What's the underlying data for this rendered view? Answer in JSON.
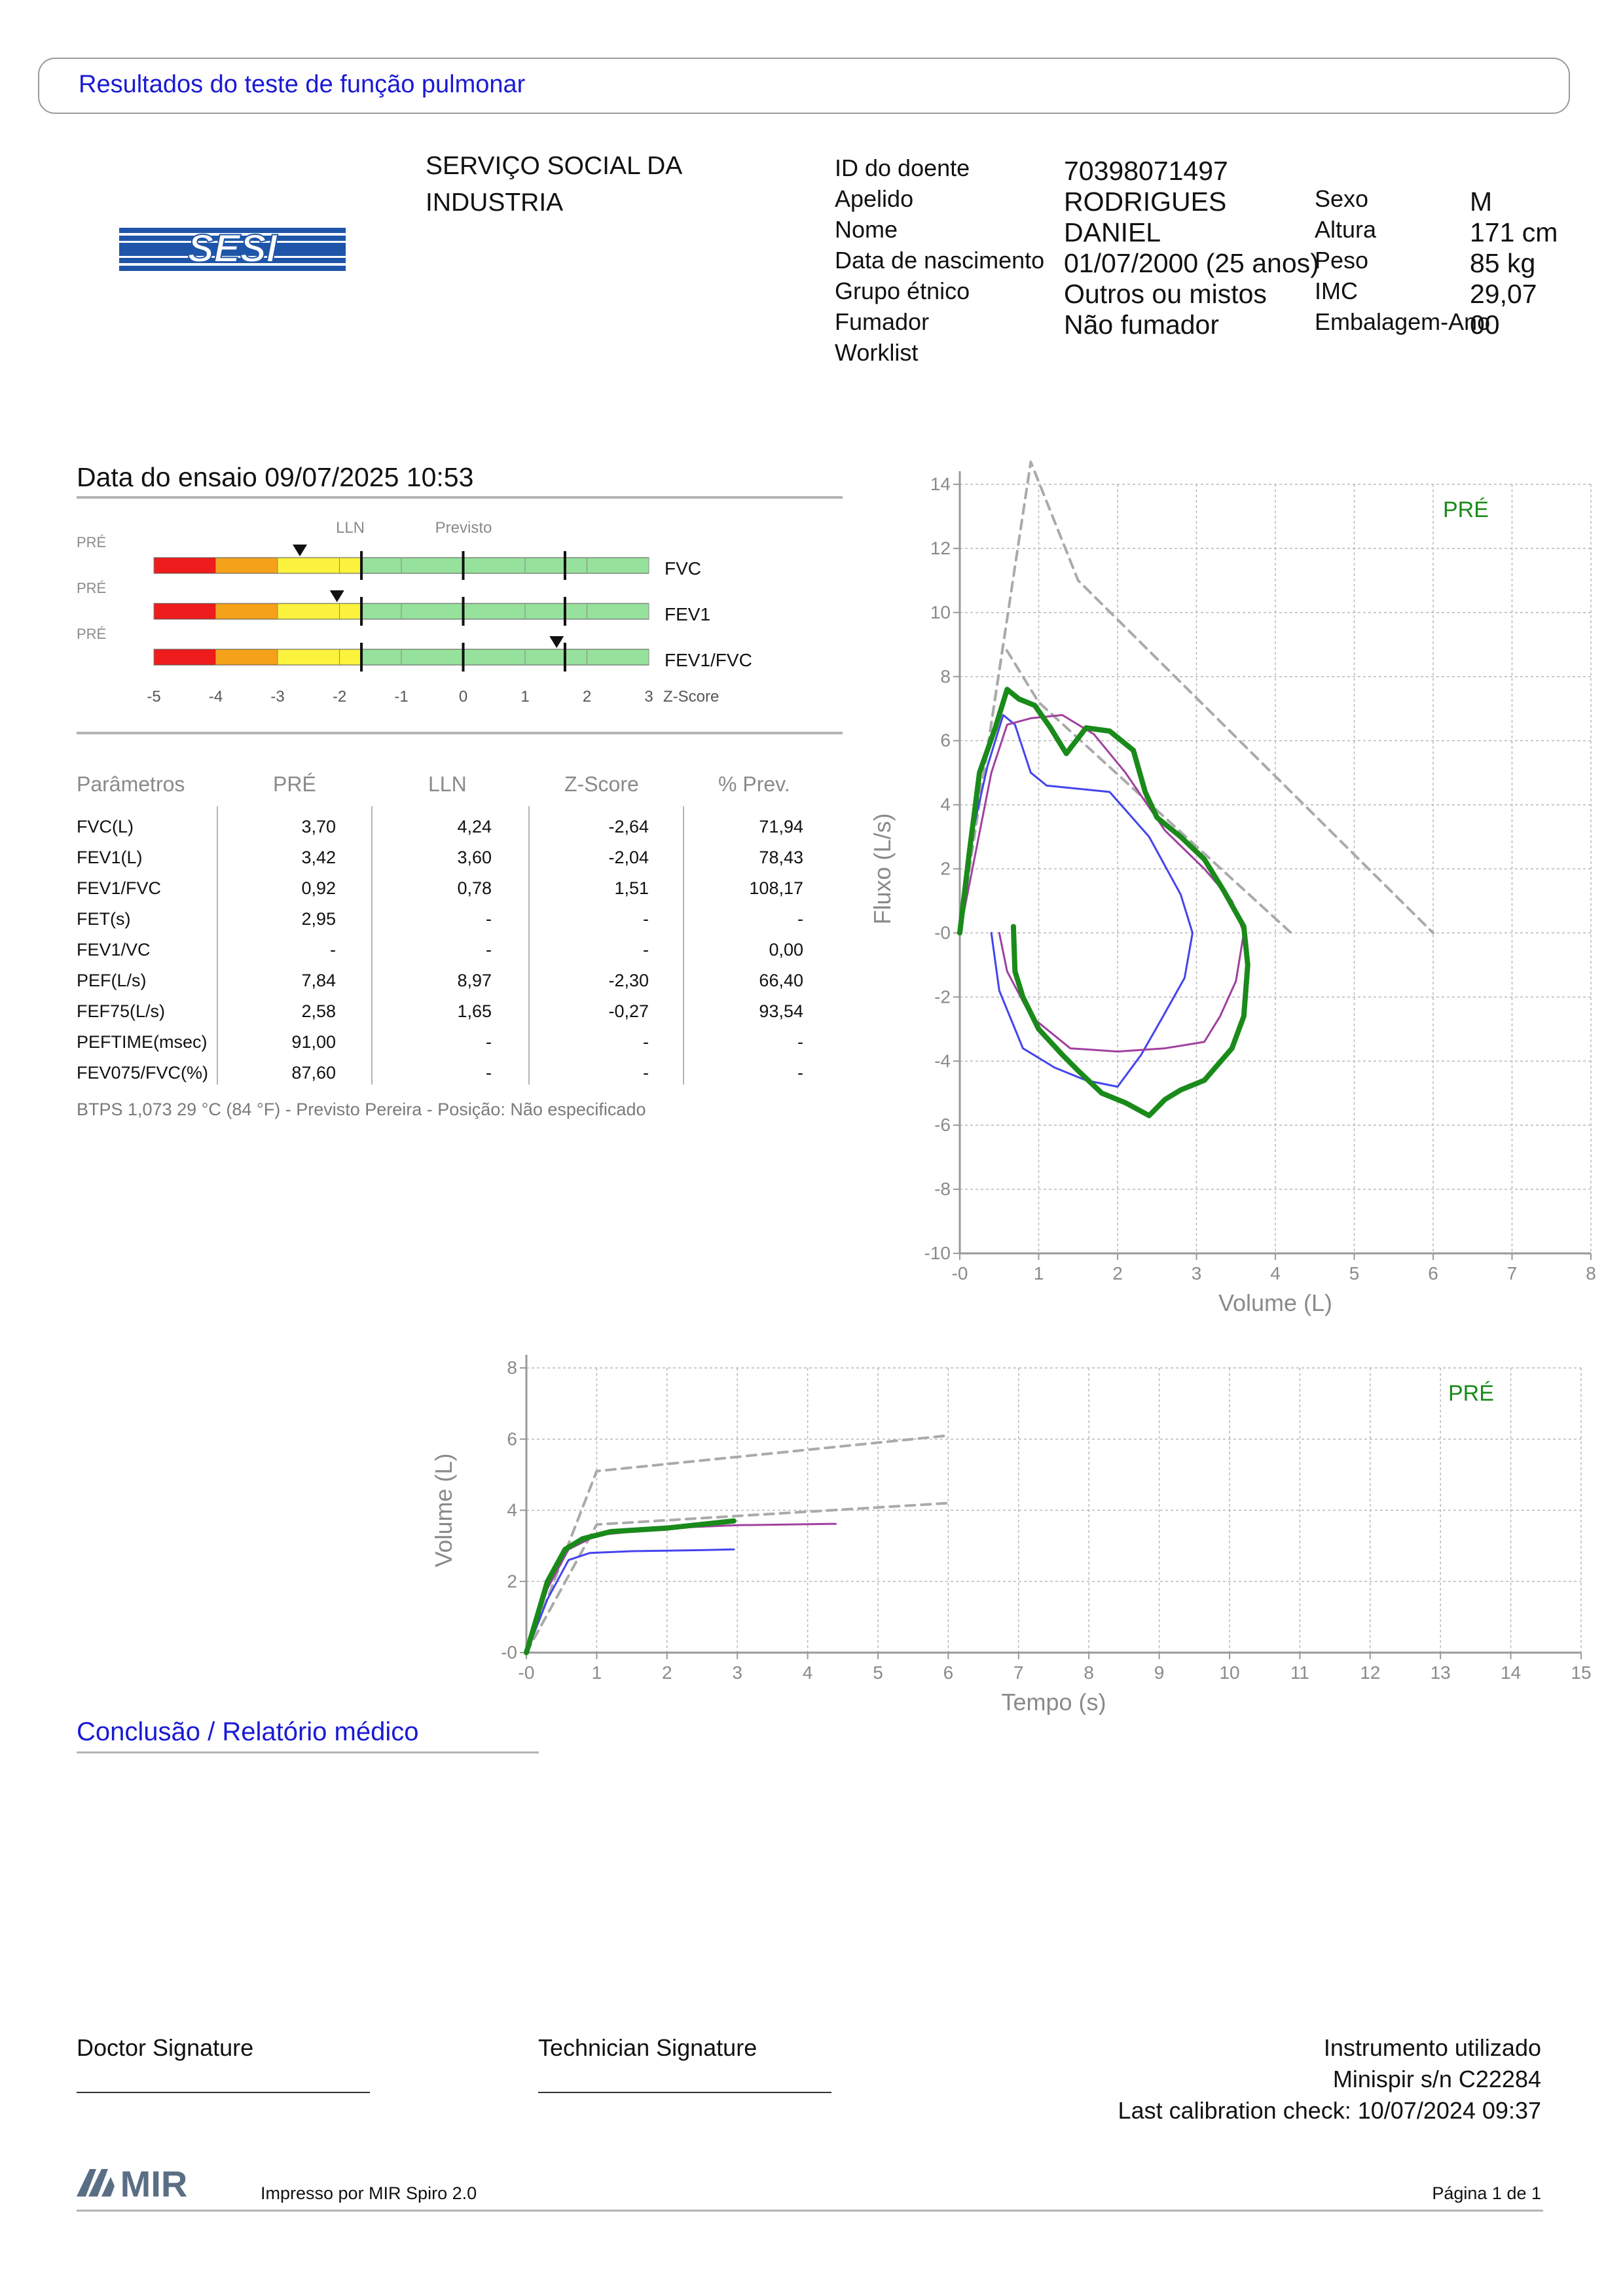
{
  "header": {
    "title": "Resultados do teste de função pulmonar"
  },
  "logo": {
    "text": "SESI",
    "color": "#1f55a8"
  },
  "organization": {
    "line1": "SERVIÇO SOCIAL DA",
    "line2": "INDUSTRIA"
  },
  "patient": {
    "fields": [
      {
        "label": "ID do doente",
        "value": "70398071497"
      },
      {
        "label": "Apelido",
        "value": "RODRIGUES"
      },
      {
        "label": "Nome",
        "value": "DANIEL"
      },
      {
        "label": "Data de nascimento",
        "value": "01/07/2000 (25 anos)"
      },
      {
        "label": "Grupo étnico",
        "value": "Outros ou mistos"
      },
      {
        "label": "Fumador",
        "value": "Não fumador"
      },
      {
        "label": "Worklist",
        "value": ""
      }
    ],
    "fields2": [
      {
        "label": "Sexo",
        "value": "M"
      },
      {
        "label": "Altura",
        "value": "171 cm"
      },
      {
        "label": "Peso",
        "value": "85 kg"
      },
      {
        "label": "IMC",
        "value": "29,07"
      },
      {
        "label": "Embalagem-Ano",
        "value": "00"
      }
    ]
  },
  "test": {
    "date_label": "Data do ensaio 09/07/2025 10:53"
  },
  "zscore": {
    "lln_label": "LLN",
    "pred_label": "Previsto",
    "axis_label": "Z-Score",
    "ticks": [
      "-5",
      "-4",
      "-3",
      "-2",
      "-1",
      "0",
      "1",
      "2",
      "3"
    ],
    "bars": [
      {
        "tag": "PRÉ",
        "name": "FVC",
        "z": -2.64,
        "lln": -1.645
      },
      {
        "tag": "PRÉ",
        "name": "FEV1",
        "z": -2.04,
        "lln": -1.645
      },
      {
        "tag": "PRÉ",
        "name": "FEV1/FVC",
        "z": 1.51,
        "lln": -1.645
      }
    ],
    "colors": {
      "red": "#ee1c1c",
      "orange": "#f5a11a",
      "yellow": "#fbf33d",
      "green": "#96e29c"
    }
  },
  "table": {
    "headers": [
      "Parâmetros",
      "PRÉ",
      "LLN",
      "Z-Score",
      "% Prev."
    ],
    "rows": [
      [
        "FVC(L)",
        "3,70",
        "4,24",
        "-2,64",
        "71,94"
      ],
      [
        "FEV1(L)",
        "3,42",
        "3,60",
        "-2,04",
        "78,43"
      ],
      [
        "FEV1/FVC",
        "0,92",
        "0,78",
        "1,51",
        "108,17"
      ],
      [
        "FET(s)",
        "2,95",
        "-",
        "-",
        "-"
      ],
      [
        "FEV1/VC",
        "-",
        "-",
        "-",
        "0,00"
      ],
      [
        "PEF(L/s)",
        "7,84",
        "8,97",
        "-2,30",
        "66,40"
      ],
      [
        "FEF75(L/s)",
        "2,58",
        "1,65",
        "-0,27",
        "93,54"
      ],
      [
        "PEFTIME(msec)",
        "91,00",
        "-",
        "-",
        "-"
      ],
      [
        "FEV075/FVC(%)",
        "87,60",
        "-",
        "-",
        "-"
      ]
    ],
    "btps": "BTPS 1,073 29 °C (84 °F) - Previsto Pereira - Posição: Não especificado"
  },
  "chart_data": [
    {
      "type": "line",
      "legend": "PRÉ",
      "xlabel": "Volume (L)",
      "ylabel": "Fluxo (L/s)",
      "xlim": [
        0,
        8
      ],
      "ylim": [
        -10,
        14
      ],
      "x_ticks": [
        "-0",
        "1",
        "2",
        "3",
        "4",
        "5",
        "6",
        "7",
        "8"
      ],
      "y_ticks": [
        "14",
        "12",
        "10",
        "8",
        "6",
        "4",
        "2",
        "-0",
        "-2",
        "-4",
        "-6",
        "-8",
        "-10"
      ],
      "grid": true,
      "series": [
        {
          "color": "#aaaaaa",
          "dashed": true,
          "points": [
            [
              0,
              0
            ],
            [
              0.9,
              14.7
            ],
            [
              1.5,
              11
            ],
            [
              6,
              0
            ]
          ]
        },
        {
          "color": "#aaaaaa",
          "dashed": true,
          "points": [
            [
              0,
              0
            ],
            [
              0.55,
              9
            ],
            [
              1,
              7.2
            ],
            [
              4.2,
              0
            ]
          ]
        },
        {
          "color": "#4444ee",
          "dashed": false,
          "points": [
            [
              0,
              0
            ],
            [
              0.15,
              3
            ],
            [
              0.35,
              5.2
            ],
            [
              0.55,
              6.8
            ],
            [
              0.7,
              6.5
            ],
            [
              0.9,
              5
            ],
            [
              1.1,
              4.6
            ],
            [
              1.5,
              4.5
            ],
            [
              1.9,
              4.4
            ],
            [
              2.4,
              3
            ],
            [
              2.8,
              1.2
            ],
            [
              2.95,
              0
            ],
            [
              2.85,
              -1.4
            ],
            [
              2.6,
              -2.5
            ],
            [
              2.3,
              -3.8
            ],
            [
              2.0,
              -4.8
            ],
            [
              1.6,
              -4.6
            ],
            [
              1.2,
              -4.2
            ],
            [
              0.8,
              -3.6
            ],
            [
              0.5,
              -1.8
            ],
            [
              0.4,
              0
            ]
          ]
        },
        {
          "color": "#a040a0",
          "dashed": false,
          "points": [
            [
              0,
              0
            ],
            [
              0.2,
              2.5
            ],
            [
              0.4,
              5
            ],
            [
              0.6,
              6.5
            ],
            [
              0.9,
              6.7
            ],
            [
              1.3,
              6.8
            ],
            [
              1.7,
              6.2
            ],
            [
              2.1,
              5
            ],
            [
              2.6,
              3.2
            ],
            [
              3.1,
              2
            ],
            [
              3.45,
              1
            ],
            [
              3.6,
              0
            ],
            [
              3.5,
              -1.5
            ],
            [
              3.3,
              -2.6
            ],
            [
              3.1,
              -3.4
            ],
            [
              2.6,
              -3.6
            ],
            [
              2.0,
              -3.7
            ],
            [
              1.4,
              -3.6
            ],
            [
              0.9,
              -2.6
            ],
            [
              0.6,
              -1.2
            ],
            [
              0.5,
              0
            ]
          ]
        },
        {
          "color": "#1a8a1a",
          "dashed": false,
          "thick": true,
          "points": [
            [
              0,
              0
            ],
            [
              0.12,
              2.5
            ],
            [
              0.25,
              5
            ],
            [
              0.45,
              6.4
            ],
            [
              0.6,
              7.6
            ],
            [
              0.75,
              7.3
            ],
            [
              0.95,
              7.1
            ],
            [
              1.15,
              6.4
            ],
            [
              1.35,
              5.6
            ],
            [
              1.6,
              6.4
            ],
            [
              1.9,
              6.3
            ],
            [
              2.2,
              5.7
            ],
            [
              2.35,
              4.4
            ],
            [
              2.5,
              3.6
            ],
            [
              2.8,
              3
            ],
            [
              3.1,
              2.3
            ],
            [
              3.35,
              1.3
            ],
            [
              3.6,
              0.2
            ],
            [
              3.65,
              -1
            ],
            [
              3.6,
              -2.6
            ],
            [
              3.45,
              -3.6
            ],
            [
              3.1,
              -4.6
            ],
            [
              2.8,
              -4.9
            ],
            [
              2.6,
              -5.2
            ],
            [
              2.4,
              -5.7
            ],
            [
              2.1,
              -5.3
            ],
            [
              1.8,
              -5
            ],
            [
              1.5,
              -4.3
            ],
            [
              1.3,
              -3.8
            ],
            [
              1.0,
              -3.0
            ],
            [
              0.8,
              -2.0
            ],
            [
              0.7,
              -1.2
            ],
            [
              0.68,
              0.2
            ]
          ]
        }
      ]
    },
    {
      "type": "line",
      "legend": "PRÉ",
      "xlabel": "Tempo (s)",
      "ylabel": "Volume (L)",
      "xlim": [
        0,
        15
      ],
      "ylim": [
        0,
        8
      ],
      "x_ticks": [
        "-0",
        "1",
        "2",
        "3",
        "4",
        "5",
        "6",
        "7",
        "8",
        "9",
        "10",
        "11",
        "12",
        "13",
        "14",
        "15"
      ],
      "y_ticks": [
        "8",
        "6",
        "4",
        "2",
        "-0"
      ],
      "grid": true,
      "series": [
        {
          "color": "#aaaaaa",
          "dashed": true,
          "points": [
            [
              0,
              0
            ],
            [
              1,
              5.1
            ],
            [
              6,
              6.1
            ]
          ]
        },
        {
          "color": "#aaaaaa",
          "dashed": true,
          "points": [
            [
              0,
              0
            ],
            [
              1,
              3.6
            ],
            [
              6,
              4.2
            ]
          ]
        },
        {
          "color": "#4444ee",
          "dashed": false,
          "points": [
            [
              0,
              0
            ],
            [
              0.3,
              1.5
            ],
            [
              0.6,
              2.6
            ],
            [
              0.9,
              2.8
            ],
            [
              1.5,
              2.85
            ],
            [
              2.5,
              2.88
            ],
            [
              2.95,
              2.9
            ]
          ]
        },
        {
          "color": "#a040a0",
          "dashed": false,
          "points": [
            [
              0,
              0
            ],
            [
              0.3,
              1.8
            ],
            [
              0.6,
              2.9
            ],
            [
              1.0,
              3.3
            ],
            [
              2,
              3.5
            ],
            [
              3,
              3.58
            ],
            [
              4.4,
              3.62
            ]
          ]
        },
        {
          "color": "#1a8a1a",
          "dashed": false,
          "thick": true,
          "points": [
            [
              0,
              0
            ],
            [
              0.3,
              2.0
            ],
            [
              0.55,
              2.9
            ],
            [
              0.8,
              3.2
            ],
            [
              1.2,
              3.4
            ],
            [
              2,
              3.5
            ],
            [
              2.95,
              3.7
            ]
          ]
        }
      ]
    }
  ],
  "conclusion": {
    "title": "Conclusão / Relatório médico"
  },
  "footer": {
    "doctor_sig": "Doctor Signature",
    "tech_sig": "Technician Signature",
    "instrument_title": "Instrumento utilizado",
    "instrument_model": "Minispir s/n C22284",
    "calibration": "Last calibration check: 10/07/2024 09:37",
    "brand": "MIR",
    "printed_by": "Impresso por MIR Spiro 2.0",
    "page": "Página 1 de 1"
  }
}
